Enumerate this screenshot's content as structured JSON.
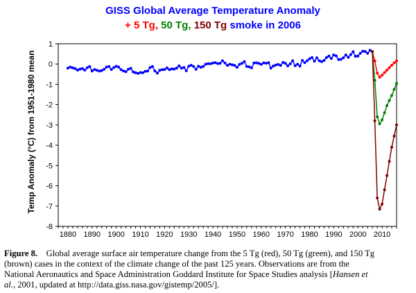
{
  "chart_data": {
    "type": "line",
    "title": "GISS Global Average Temperature Anomaly",
    "subtitle": [
      {
        "text": "+ 5 Tg, ",
        "color": "#ff0000"
      },
      {
        "text": "50 Tg, ",
        "color": "#008000"
      },
      {
        "text": "150 Tg ",
        "color": "#800000"
      },
      {
        "text": "smoke in 2006",
        "color": "#0000ff"
      }
    ],
    "title_color": "#0000ff",
    "xlabel": "",
    "ylabel": "Temp Anomaly (°C) from 1951-1980 mean",
    "xlim": [
      1876,
      2016
    ],
    "ylim": [
      -8,
      1
    ],
    "xticks": [
      1880,
      1890,
      1900,
      1910,
      1920,
      1930,
      1940,
      1950,
      1960,
      1970,
      1980,
      1990,
      2000,
      2010
    ],
    "yticks": [
      1,
      0,
      -1,
      -2,
      -3,
      -4,
      -5,
      -6,
      -7,
      -8
    ],
    "grid": false,
    "series": [
      {
        "name": "Observations",
        "color": "#0000ff",
        "marker": "dot",
        "x": [
          1880,
          1881,
          1882,
          1883,
          1884,
          1885,
          1886,
          1887,
          1888,
          1889,
          1890,
          1891,
          1892,
          1893,
          1894,
          1895,
          1896,
          1897,
          1898,
          1899,
          1900,
          1901,
          1902,
          1903,
          1904,
          1905,
          1906,
          1907,
          1908,
          1909,
          1910,
          1911,
          1912,
          1913,
          1914,
          1915,
          1916,
          1917,
          1918,
          1919,
          1920,
          1921,
          1922,
          1923,
          1924,
          1925,
          1926,
          1927,
          1928,
          1929,
          1930,
          1931,
          1932,
          1933,
          1934,
          1935,
          1936,
          1937,
          1938,
          1939,
          1940,
          1941,
          1942,
          1943,
          1944,
          1945,
          1946,
          1947,
          1948,
          1949,
          1950,
          1951,
          1952,
          1953,
          1954,
          1955,
          1956,
          1957,
          1958,
          1959,
          1960,
          1961,
          1962,
          1963,
          1964,
          1965,
          1966,
          1967,
          1968,
          1969,
          1970,
          1971,
          1972,
          1973,
          1974,
          1975,
          1976,
          1977,
          1978,
          1979,
          1980,
          1981,
          1982,
          1983,
          1984,
          1985,
          1986,
          1987,
          1988,
          1989,
          1990,
          1991,
          1992,
          1993,
          1994,
          1995,
          1996,
          1997,
          1998,
          1999,
          2000,
          2001,
          2002,
          2003,
          2004,
          2005,
          2006
        ],
        "values": [
          -0.2,
          -0.15,
          -0.19,
          -0.22,
          -0.3,
          -0.25,
          -0.22,
          -0.3,
          -0.18,
          -0.12,
          -0.34,
          -0.27,
          -0.31,
          -0.35,
          -0.32,
          -0.26,
          -0.15,
          -0.12,
          -0.27,
          -0.17,
          -0.11,
          -0.15,
          -0.28,
          -0.34,
          -0.38,
          -0.26,
          -0.21,
          -0.39,
          -0.43,
          -0.46,
          -0.42,
          -0.43,
          -0.36,
          -0.35,
          -0.17,
          -0.12,
          -0.34,
          -0.45,
          -0.31,
          -0.28,
          -0.27,
          -0.19,
          -0.28,
          -0.24,
          -0.25,
          -0.2,
          -0.09,
          -0.2,
          -0.17,
          -0.33,
          -0.11,
          -0.06,
          -0.12,
          -0.26,
          -0.11,
          -0.16,
          -0.12,
          -0.01,
          0.02,
          0.01,
          0.05,
          0.07,
          0.02,
          0.04,
          0.16,
          0.05,
          -0.07,
          -0.01,
          -0.04,
          -0.07,
          -0.16,
          -0.02,
          0.03,
          0.12,
          -0.12,
          -0.14,
          -0.19,
          0.05,
          0.06,
          0.03,
          -0.02,
          0.06,
          0.04,
          0.07,
          -0.2,
          -0.1,
          -0.05,
          -0.02,
          -0.07,
          0.08,
          0.03,
          -0.09,
          0.01,
          0.16,
          -0.08,
          -0.01,
          -0.1,
          0.18,
          0.07,
          0.16,
          0.26,
          0.32,
          0.14,
          0.31,
          0.16,
          0.12,
          0.18,
          0.32,
          0.39,
          0.27,
          0.45,
          0.4,
          0.22,
          0.23,
          0.31,
          0.45,
          0.33,
          0.46,
          0.61,
          0.38,
          0.39,
          0.53,
          0.63,
          0.62,
          0.53,
          0.68,
          0.61
        ]
      },
      {
        "name": "5 Tg",
        "color": "#ff0000",
        "marker": "dot",
        "x": [
          2006,
          2007,
          2008,
          2009,
          2010,
          2011,
          2012,
          2013,
          2014,
          2015,
          2016
        ],
        "values": [
          0.61,
          0.15,
          -0.45,
          -0.65,
          -0.55,
          -0.42,
          -0.3,
          -0.18,
          -0.06,
          0.06,
          0.15
        ]
      },
      {
        "name": "50 Tg",
        "color": "#008000",
        "marker": "dot",
        "x": [
          2006,
          2007,
          2008,
          2009,
          2010,
          2011,
          2012,
          2013,
          2014,
          2015,
          2016
        ],
        "values": [
          0.61,
          -0.8,
          -2.6,
          -2.95,
          -2.75,
          -2.4,
          -2.05,
          -1.8,
          -1.55,
          -1.25,
          -0.95
        ]
      },
      {
        "name": "150 Tg",
        "color": "#800000",
        "marker": "dot",
        "x": [
          2006,
          2007,
          2008,
          2009,
          2010,
          2011,
          2012,
          2013,
          2014,
          2015,
          2016
        ],
        "values": [
          0.61,
          -2.8,
          -6.6,
          -7.15,
          -6.9,
          -6.2,
          -5.5,
          -4.8,
          -4.1,
          -3.55,
          -3.0
        ]
      }
    ]
  },
  "caption": {
    "label": "Figure 8.",
    "line1": "Global average surface air temperature change from the 5 Tg (red), 50 Tg (green), and 150 Tg",
    "line2": "(brown) cases in the context of the climate change of the past 125 years. Observations are from the",
    "line3a": "National Aeronautics and Space Administration Goddard Institute for Space Studies analysis [",
    "line3b": "Hansen et",
    "line4a": "al.",
    "line4b": ", 2001, updated at http://data.giss.nasa.gov/gistemp/2005/]."
  }
}
